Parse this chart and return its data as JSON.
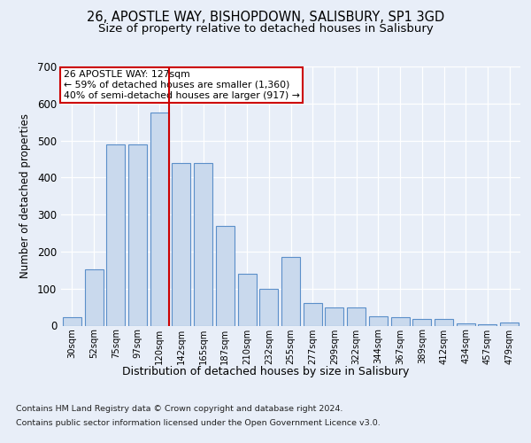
{
  "title1": "26, APOSTLE WAY, BISHOPDOWN, SALISBURY, SP1 3GD",
  "title2": "Size of property relative to detached houses in Salisbury",
  "xlabel": "Distribution of detached houses by size in Salisbury",
  "ylabel": "Number of detached properties",
  "categories": [
    "30sqm",
    "52sqm",
    "75sqm",
    "97sqm",
    "120sqm",
    "142sqm",
    "165sqm",
    "187sqm",
    "210sqm",
    "232sqm",
    "255sqm",
    "277sqm",
    "299sqm",
    "322sqm",
    "344sqm",
    "367sqm",
    "389sqm",
    "412sqm",
    "434sqm",
    "457sqm",
    "479sqm"
  ],
  "values": [
    22,
    152,
    490,
    490,
    575,
    440,
    440,
    270,
    140,
    100,
    185,
    60,
    50,
    50,
    25,
    22,
    18,
    18,
    5,
    3,
    8
  ],
  "bar_color": "#c9d9ed",
  "bar_edge_color": "#5b8fc9",
  "red_line_index": 4,
  "annotation_title": "26 APOSTLE WAY: 127sqm",
  "annotation_line1": "← 59% of detached houses are smaller (1,360)",
  "annotation_line2": "40% of semi-detached houses are larger (917) →",
  "ylim": [
    0,
    700
  ],
  "yticks": [
    0,
    100,
    200,
    300,
    400,
    500,
    600,
    700
  ],
  "footer1": "Contains HM Land Registry data © Crown copyright and database right 2024.",
  "footer2": "Contains public sector information licensed under the Open Government Licence v3.0.",
  "bg_color": "#e8eef8",
  "plot_bg_color": "#e8eef8"
}
